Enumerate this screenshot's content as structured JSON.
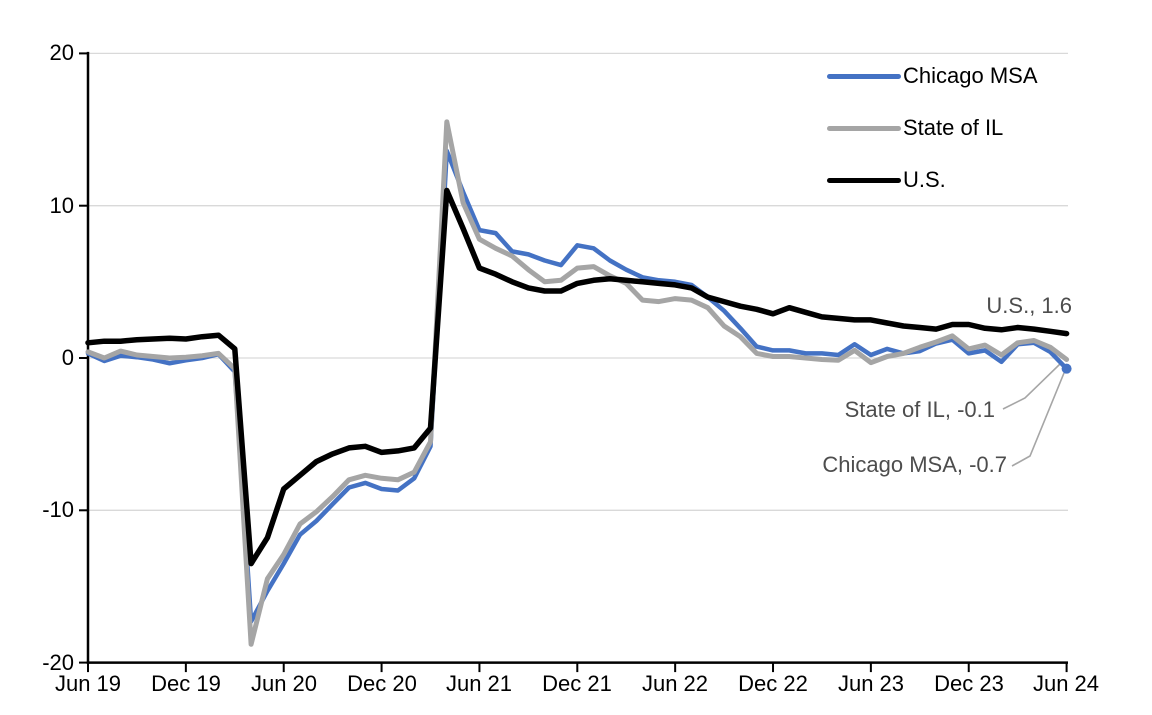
{
  "chart_data": {
    "type": "line",
    "x_months": [
      "2019-06",
      "2019-07",
      "2019-08",
      "2019-09",
      "2019-10",
      "2019-11",
      "2019-12",
      "2020-01",
      "2020-02",
      "2020-03",
      "2020-04",
      "2020-05",
      "2020-06",
      "2020-07",
      "2020-08",
      "2020-09",
      "2020-10",
      "2020-11",
      "2020-12",
      "2021-01",
      "2021-02",
      "2021-03",
      "2021-04",
      "2021-05",
      "2021-06",
      "2021-07",
      "2021-08",
      "2021-09",
      "2021-10",
      "2021-11",
      "2021-12",
      "2022-01",
      "2022-02",
      "2022-03",
      "2022-04",
      "2022-05",
      "2022-06",
      "2022-07",
      "2022-08",
      "2022-09",
      "2022-10",
      "2022-11",
      "2022-12",
      "2023-01",
      "2023-02",
      "2023-03",
      "2023-04",
      "2023-05",
      "2023-06",
      "2023-07",
      "2023-08",
      "2023-09",
      "2023-10",
      "2023-11",
      "2023-12",
      "2024-01",
      "2024-02",
      "2024-03",
      "2024-04",
      "2024-05",
      "2024-06"
    ],
    "x_tick_labels": [
      "Jun 19",
      "Dec 19",
      "Jun 20",
      "Dec 20",
      "Jun 21",
      "Dec 21",
      "Jun 22",
      "Dec 22",
      "Jun 23",
      "Dec 23",
      "Jun 24"
    ],
    "y_tick_labels": [
      "20",
      "10",
      "0",
      "-10",
      "-20"
    ],
    "yticks": [
      20,
      10,
      0,
      -10,
      -20
    ],
    "ylim": [
      -20,
      20
    ],
    "grid": "horizontal",
    "legend_position": "top-right",
    "series": [
      {
        "id": "chicago-msa",
        "name": "Chicago MSA",
        "color": "#4472C4",
        "width": 4.5,
        "end_marker": true,
        "values": [
          0.3,
          -0.2,
          0.15,
          0.05,
          -0.1,
          -0.35,
          -0.15,
          0.0,
          0.25,
          -0.9,
          -17.3,
          -15.3,
          -13.5,
          -11.6,
          -10.7,
          -9.6,
          -8.5,
          -8.2,
          -8.6,
          -8.7,
          -7.9,
          -5.8,
          13.6,
          10.9,
          8.4,
          8.2,
          7.0,
          6.8,
          6.4,
          6.1,
          7.4,
          7.2,
          6.4,
          5.8,
          5.3,
          5.1,
          5.0,
          4.8,
          4.0,
          3.1,
          1.95,
          0.75,
          0.5,
          0.5,
          0.3,
          0.3,
          0.2,
          0.9,
          0.2,
          0.6,
          0.3,
          0.45,
          0.95,
          1.2,
          0.3,
          0.5,
          -0.25,
          0.9,
          1.0,
          0.4,
          -0.7
        ]
      },
      {
        "id": "state-of-il",
        "name": "State of IL",
        "color": "#A5A5A5",
        "width": 5,
        "end_marker": false,
        "values": [
          0.4,
          0.0,
          0.45,
          0.2,
          0.1,
          0.0,
          0.05,
          0.15,
          0.3,
          -0.7,
          -18.8,
          -14.5,
          -12.9,
          -10.9,
          -10.1,
          -9.1,
          -8.0,
          -7.7,
          -7.9,
          -8.0,
          -7.5,
          -5.5,
          15.5,
          10.2,
          7.8,
          7.2,
          6.7,
          5.8,
          5.0,
          5.1,
          5.9,
          6.0,
          5.4,
          4.9,
          3.8,
          3.7,
          3.9,
          3.8,
          3.3,
          2.1,
          1.4,
          0.3,
          0.1,
          0.1,
          0.0,
          -0.1,
          -0.15,
          0.5,
          -0.3,
          0.1,
          0.3,
          0.7,
          1.05,
          1.45,
          0.6,
          0.85,
          0.2,
          1.0,
          1.15,
          0.7,
          -0.1
        ]
      },
      {
        "id": "us",
        "name": "U.S.",
        "color": "#000000",
        "width": 5.5,
        "end_marker": false,
        "values": [
          1.0,
          1.1,
          1.1,
          1.2,
          1.25,
          1.3,
          1.25,
          1.4,
          1.5,
          0.6,
          -13.5,
          -11.8,
          -8.6,
          -7.7,
          -6.8,
          -6.3,
          -5.9,
          -5.8,
          -6.2,
          -6.1,
          -5.9,
          -4.6,
          11.0,
          8.5,
          5.9,
          5.5,
          5.0,
          4.6,
          4.4,
          4.4,
          4.9,
          5.1,
          5.2,
          5.1,
          5.0,
          4.9,
          4.8,
          4.6,
          4.0,
          3.7,
          3.4,
          3.2,
          2.9,
          3.3,
          3.0,
          2.7,
          2.6,
          2.5,
          2.5,
          2.3,
          2.1,
          2.0,
          1.9,
          2.2,
          2.2,
          1.95,
          1.85,
          2.0,
          1.9,
          1.75,
          1.6
        ]
      }
    ],
    "annotations": [
      {
        "id": "us-end",
        "text": "U.S., 1.6",
        "series": "U.S.",
        "value": 1.6
      },
      {
        "id": "il-end",
        "text": "State of IL, -0.1",
        "series": "State of IL",
        "value": -0.1
      },
      {
        "id": "chicago-end",
        "text": "Chicago MSA, -0.7",
        "series": "Chicago MSA",
        "value": -0.7
      }
    ]
  },
  "legend": {
    "items": [
      {
        "label": "Chicago MSA",
        "color": "#4472C4"
      },
      {
        "label": "State of IL",
        "color": "#A5A5A5"
      },
      {
        "label": "U.S.",
        "color": "#000000"
      }
    ]
  },
  "colors": {
    "gridline": "#D9D9D9",
    "axis": "#000000",
    "leader_line": "#A6A6A6",
    "annotation_text": "#4d4d4d"
  }
}
